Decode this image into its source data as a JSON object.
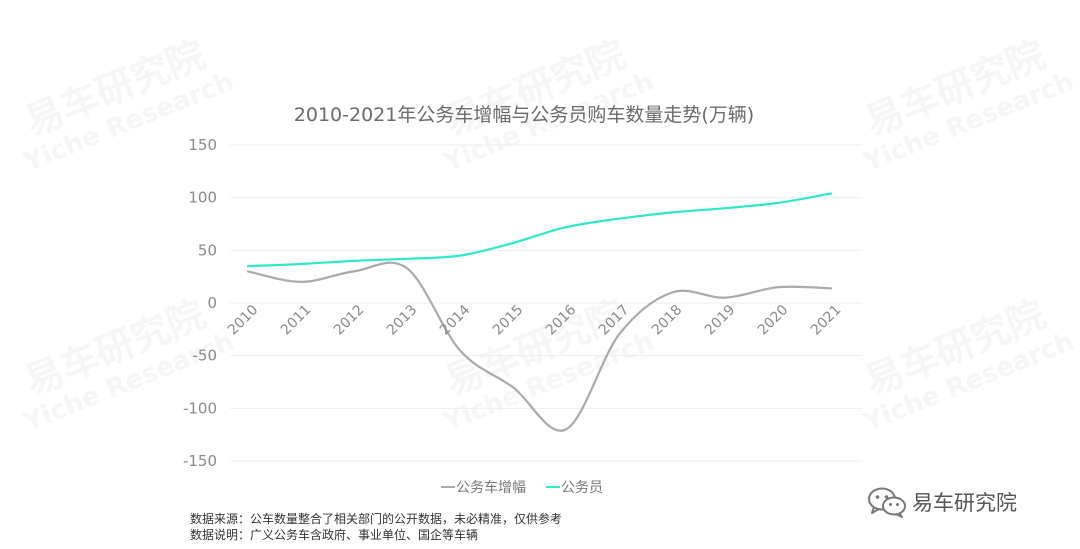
{
  "watermark": {
    "cn": "易车研究院",
    "en": "Yiche Research"
  },
  "chart_data": {
    "type": "line",
    "title": "2010-2021年公务车增幅与公务员购车数量走势(万辆)",
    "categories": [
      "2010",
      "2011",
      "2012",
      "2013",
      "2014",
      "2015",
      "2016",
      "2017",
      "2018",
      "2019",
      "2020",
      "2021"
    ],
    "yticks": [
      150,
      100,
      50,
      0,
      -50,
      -100,
      -150
    ],
    "ylim": [
      -150,
      150
    ],
    "grid": true,
    "legend_position": "bottom",
    "series": [
      {
        "name": "公务车增幅",
        "color": "#a9a9b0",
        "values": [
          30,
          20,
          30,
          33,
          -45,
          -80,
          -120,
          -30,
          10,
          5,
          15,
          14
        ]
      },
      {
        "name": "公务员",
        "color": "#2ee8c8",
        "values": [
          35,
          37,
          40,
          42,
          45,
          57,
          72,
          80,
          86,
          90,
          95,
          104
        ]
      }
    ]
  },
  "notes": {
    "source": "数据来源：公车数量整合了相关部门的公开数据，未必精准，仅供参考",
    "explanation": "数据说明：广义公务车含政府、事业单位、国企等车辆"
  },
  "brand": {
    "name": "易车研究院",
    "icon": "wechat-icon"
  }
}
